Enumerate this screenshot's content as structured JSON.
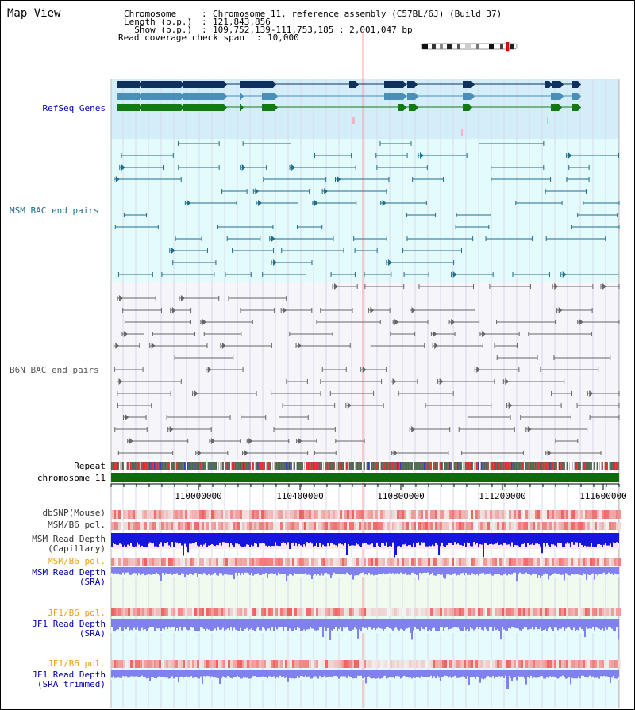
{
  "title": "Map View",
  "info": {
    "chromosome_key": "Chromosome    ",
    "chromosome_value": "Chromosome 11, reference assembly (C57BL/6J) (Build 37)",
    "length_key": "Length (b.p.)",
    "length_value": "121,843,856",
    "show_key": "  Show (b.p.)",
    "show_value": "109,752,139-111,753,185 : 2,001,047 bp",
    "coverage_key": "Read coverage check span",
    "coverage_value": "10,000"
  },
  "tracks": {
    "refseq": "RefSeq Genes",
    "msm_bac": "MSM BAC end pairs",
    "b6n_bac": "B6N BAC end pairs",
    "repeat": "Repeat",
    "chromosome": "chromosome 11",
    "dbsnp": "dbSNP(Mouse)",
    "msm_b6_pol_1": "MSM/B6 pol.",
    "msm_depth_cap_1": "MSM Read Depth",
    "msm_depth_cap_2": "(Capillary)",
    "msm_b6_pol_2": "MSM/B6 pol.",
    "msm_depth_sra_1": "MSM Read Depth",
    "msm_depth_sra_2": "(SRA)",
    "jf1_b6_pol_1": "JF1/B6 pol.",
    "jf1_depth_sra_1": "JF1 Read Depth",
    "jf1_depth_sra_2": "(SRA)",
    "jf1_b6_pol_2": "JF1/B6 pol.",
    "jf1_depth_trim_1": "JF1 Read Depth",
    "jf1_depth_trim_2": "(SRA trimmed)"
  },
  "axis": {
    "ticks": [
      "110000000",
      "110400000",
      "110800000",
      "111200000",
      "111600000"
    ]
  },
  "colors": {
    "refseq_bg": "#d4eef9",
    "msm_bac_bg": "#e3fbfb",
    "b6n_bac_bg": "#f5f5fa",
    "msm_sra_bg": "#eefbee",
    "jf1_bg": "#e6fcfc",
    "gene_dark": "#10305e",
    "gene_mid": "#4a8fb8",
    "gene_green": "#127a12",
    "msm_pair": "#1e6e8c",
    "b6n_pair": "#666666",
    "chromosome_bar": "#0d6b0d",
    "depth_cap": "#1515dd",
    "depth_sra": "#8080ee",
    "pol_red": "#ee3333",
    "label_blue": "#0000aa",
    "label_msm": "#1e6e8c",
    "label_orange": "#e8a020"
  }
}
